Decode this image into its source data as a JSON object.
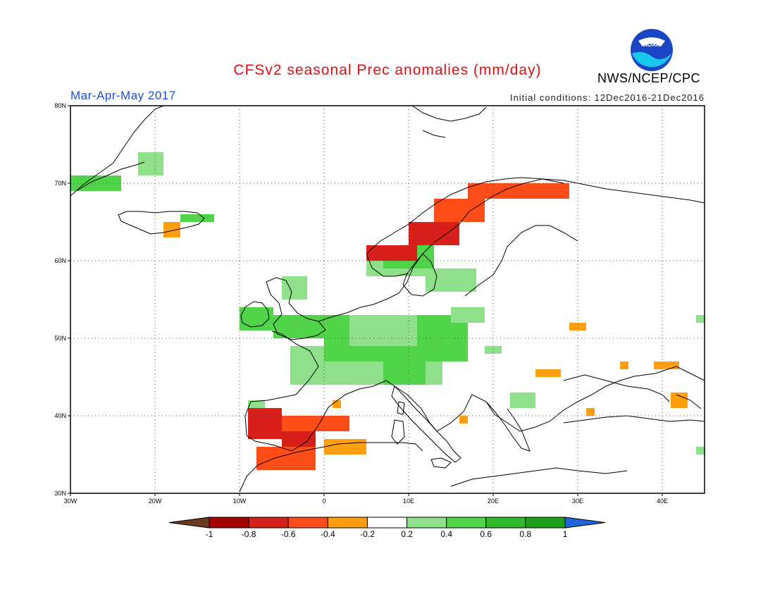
{
  "title": "CFSv2 seasonal Prec anomalies (mm/day)",
  "period": "Mar-Apr-May 2017",
  "initial_conditions": "Initial conditions: 12Dec2016-21Dec2016",
  "agency": "NWS/NCEP/CPC",
  "logo_text": "NOAA",
  "colors": {
    "title": "#e01010",
    "period": "#1a4fd6",
    "scale": [
      "#6b3a1f",
      "#a30000",
      "#d8201a",
      "#ff4d1a",
      "#ff9f0f",
      "#ffffff",
      "#8fe08a",
      "#52d44a",
      "#2fb82a",
      "#1ea01a",
      "#1f64d8"
    ]
  },
  "map": {
    "lon_range": [
      -30,
      45
    ],
    "lat_range": [
      30,
      80
    ],
    "lat_labels": [
      "30N",
      "40N",
      "50N",
      "60N",
      "70N",
      "80N"
    ],
    "lon_labels": [
      "30W",
      "20W",
      "10W",
      "0",
      "10E",
      "20E",
      "30E",
      "40E"
    ],
    "gridlines": true,
    "anomaly_cells": [
      {
        "lon": -30,
        "lat": 69,
        "w": 6,
        "h": 2,
        "value": 0.4
      },
      {
        "lon": -22,
        "lat": 71,
        "w": 3,
        "h": 3,
        "value": 0.3
      },
      {
        "lon": -17,
        "lat": 65,
        "w": 4,
        "h": 1,
        "value": 0.4
      },
      {
        "lon": -19,
        "lat": 63,
        "w": 2,
        "h": 2,
        "value": -0.3
      },
      {
        "lon": -5,
        "lat": 55,
        "w": 3,
        "h": 3,
        "value": 0.3
      },
      {
        "lon": -10,
        "lat": 51,
        "w": 4,
        "h": 3,
        "value": 0.4
      },
      {
        "lon": -6,
        "lat": 50,
        "w": 10,
        "h": 3,
        "value": 0.4
      },
      {
        "lon": -4,
        "lat": 44,
        "w": 18,
        "h": 5,
        "value": 0.3
      },
      {
        "lon": 0,
        "lat": 47,
        "w": 17,
        "h": 6,
        "value": 0.4
      },
      {
        "lon": 3,
        "lat": 49,
        "w": 8,
        "h": 4,
        "value": 0.3
      },
      {
        "lon": 7,
        "lat": 44,
        "w": 5,
        "h": 3,
        "value": 0.5
      },
      {
        "lon": 5,
        "lat": 58,
        "w": 8,
        "h": 4,
        "value": 0.3
      },
      {
        "lon": 12,
        "lat": 56,
        "w": 6,
        "h": 3,
        "value": 0.3
      },
      {
        "lon": 15,
        "lat": 52,
        "w": 4,
        "h": 2,
        "value": 0.3
      },
      {
        "lon": -9,
        "lat": 41,
        "w": 2,
        "h": 1,
        "value": 0.3
      },
      {
        "lon": 7,
        "lat": 59,
        "w": 6,
        "h": 3,
        "value": 0.4
      },
      {
        "lon": -9,
        "lat": 37,
        "w": 4,
        "h": 4,
        "value": -0.7
      },
      {
        "lon": -5,
        "lat": 36,
        "w": 4,
        "h": 3,
        "value": -0.6
      },
      {
        "lon": -5,
        "lat": 38,
        "w": 8,
        "h": 2,
        "value": -0.4
      },
      {
        "lon": -8,
        "lat": 33,
        "w": 7,
        "h": 3,
        "value": -0.4
      },
      {
        "lon": 0,
        "lat": 35,
        "w": 5,
        "h": 2,
        "value": -0.3
      },
      {
        "lon": 5,
        "lat": 60,
        "w": 6,
        "h": 2,
        "value": -0.6
      },
      {
        "lon": 10,
        "lat": 62,
        "w": 6,
        "h": 3,
        "value": -0.6
      },
      {
        "lon": 13,
        "lat": 65,
        "w": 6,
        "h": 3,
        "value": -0.4
      },
      {
        "lon": 17,
        "lat": 68,
        "w": 12,
        "h": 2,
        "value": -0.4
      },
      {
        "lon": 25,
        "lat": 45,
        "w": 3,
        "h": 1,
        "value": -0.3
      },
      {
        "lon": 29,
        "lat": 51,
        "w": 2,
        "h": 1,
        "value": -0.3
      },
      {
        "lon": 35,
        "lat": 46,
        "w": 1,
        "h": 1,
        "value": -0.3
      },
      {
        "lon": 39,
        "lat": 46,
        "w": 3,
        "h": 1,
        "value": -0.3
      },
      {
        "lon": 41,
        "lat": 41,
        "w": 2,
        "h": 2,
        "value": -0.3
      },
      {
        "lon": 31,
        "lat": 40,
        "w": 1,
        "h": 1,
        "value": -0.3
      },
      {
        "lon": 16,
        "lat": 39,
        "w": 1,
        "h": 1,
        "value": -0.3
      },
      {
        "lon": 1,
        "lat": 41,
        "w": 1,
        "h": 1,
        "value": -0.3
      },
      {
        "lon": 44,
        "lat": 35,
        "w": 1,
        "h": 1,
        "value": 0.3
      },
      {
        "lon": 44,
        "lat": 52,
        "w": 1,
        "h": 1,
        "value": 0.3
      },
      {
        "lon": 19,
        "lat": 48,
        "w": 2,
        "h": 1,
        "value": 0.3
      },
      {
        "lon": 22,
        "lat": 41,
        "w": 3,
        "h": 2,
        "value": 0.3
      }
    ]
  },
  "colorbar": {
    "labels": [
      "-1",
      "-0.8",
      "-0.6",
      "-0.4",
      "-0.2",
      "0.2",
      "0.4",
      "0.6",
      "0.8",
      "1"
    ]
  }
}
